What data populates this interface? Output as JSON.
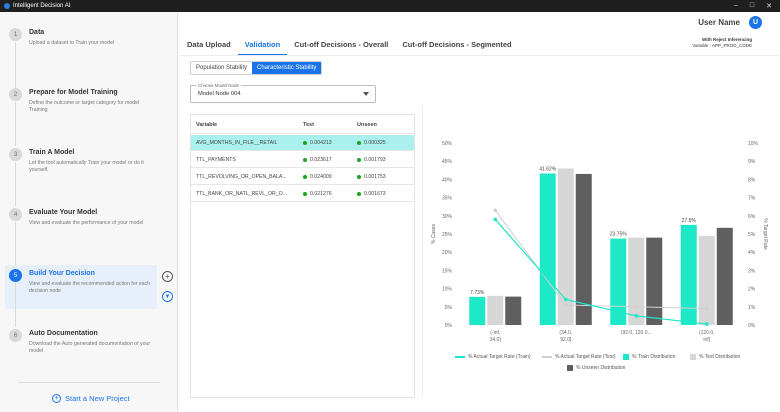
{
  "window": {
    "title": "Intelligent Decision AI"
  },
  "header": {
    "user_name": "User Name",
    "avatar_initial": "U"
  },
  "sidebar": {
    "steps": [
      {
        "num": "1",
        "title": "Data",
        "desc": "Upload a dataset to Train your model"
      },
      {
        "num": "2",
        "title": "Prepare for Model Training",
        "desc": "Define the outcome or target category for model Training"
      },
      {
        "num": "3",
        "title": "Train A Model",
        "desc": "Let the tool automatically Train your model or do it yourself."
      },
      {
        "num": "4",
        "title": "Evaluate Your Model",
        "desc": "View and evaluate the performance of your model"
      },
      {
        "num": "5",
        "title": "Build Your Decision",
        "desc": "View and evaluate the recommended action for each decision node"
      },
      {
        "num": "6",
        "title": "Auto Documentation",
        "desc": "Download the Auto generated documentation of your model"
      }
    ],
    "new_project": "Start a New Project"
  },
  "tabs": [
    "Data Upload",
    "Validation",
    "Cut-off Decisions - Overall",
    "Cut-off Decisions - Segmented"
  ],
  "reject_note": {
    "line1": "With Reject Inferencing",
    "line2": "Variable : APP_PROD_CODE"
  },
  "stability_toggle": {
    "population": "Population Stability",
    "characteristic": "Characteristic Stability"
  },
  "model_select": {
    "label": "Choose Model Node",
    "value": "Model Node 004"
  },
  "table": {
    "headers": {
      "variable": "Variable",
      "test": "Test",
      "unseen": "Unseen"
    },
    "rows": [
      {
        "variable": "AVG_MONTHS_IN_FILE__RETAIL",
        "test": "0.004213",
        "unseen": "0.000325"
      },
      {
        "variable": "TTL_PAYMENTS",
        "test": "0.023617",
        "unseen": "0.001793"
      },
      {
        "variable": "TTL_REVOLVING_OR_OPEN_BALA...",
        "test": "0.024009",
        "unseen": "0.001753"
      },
      {
        "variable": "TTL_BANK_OR_NATL_REVL_OR_O...",
        "test": "0.021276",
        "unseen": "0.001673"
      }
    ]
  },
  "colors": {
    "accent": "#1a73e8",
    "train": "#1de9c9",
    "test": "#d6d6d6",
    "unseen": "#5f5f5f",
    "target_train": "#1de9c9",
    "target_test": "#d0d0d0"
  },
  "chart_data": {
    "type": "bar",
    "categories": [
      "(-inf, 34.0]",
      "(34.0, 92.0]",
      "(92.0, 120.0...",
      "(120.0, inf]"
    ],
    "series": [
      {
        "name": "% Train Distribution",
        "values": [
          7.73,
          41.62,
          23.75,
          27.5
        ]
      },
      {
        "name": "% Test Distribution",
        "values": [
          8.0,
          43.0,
          24.0,
          24.5
        ]
      },
      {
        "name": "% Unseen Distribution",
        "values": [
          7.8,
          41.5,
          24.0,
          26.7
        ]
      }
    ],
    "lines": [
      {
        "name": "% Actual Target Rate (Train)",
        "values": [
          5.8,
          1.4,
          0.5,
          0.05
        ]
      },
      {
        "name": "% Actual Target Rate (Test)",
        "values": [
          6.3,
          1.1,
          1.0,
          0.9
        ]
      }
    ],
    "data_labels": [
      "7.73%",
      "41.62%",
      "23.75%",
      "27.5%"
    ],
    "y_left": {
      "label": "% Cases",
      "ticks": [
        "0%",
        "5%",
        "10%",
        "15%",
        "20%",
        "25%",
        "30%",
        "35%",
        "40%",
        "45%",
        "50%"
      ],
      "lim": [
        0,
        50
      ]
    },
    "y_right": {
      "label": "% Target Rate",
      "ticks": [
        "0%",
        "1%",
        "2%",
        "3%",
        "4%",
        "5%",
        "6%",
        "7%",
        "8%",
        "9%",
        "10%"
      ],
      "lim": [
        0,
        10
      ]
    },
    "x_ticks": [
      [
        "(-inf,",
        "34.0]"
      ],
      [
        "(34.0,",
        "92.0]"
      ],
      [
        "(92.0, 120.0...",
        ""
      ],
      [
        "(120.0,",
        "inf]"
      ]
    ],
    "legend_placement": "bottom",
    "grid": false
  }
}
